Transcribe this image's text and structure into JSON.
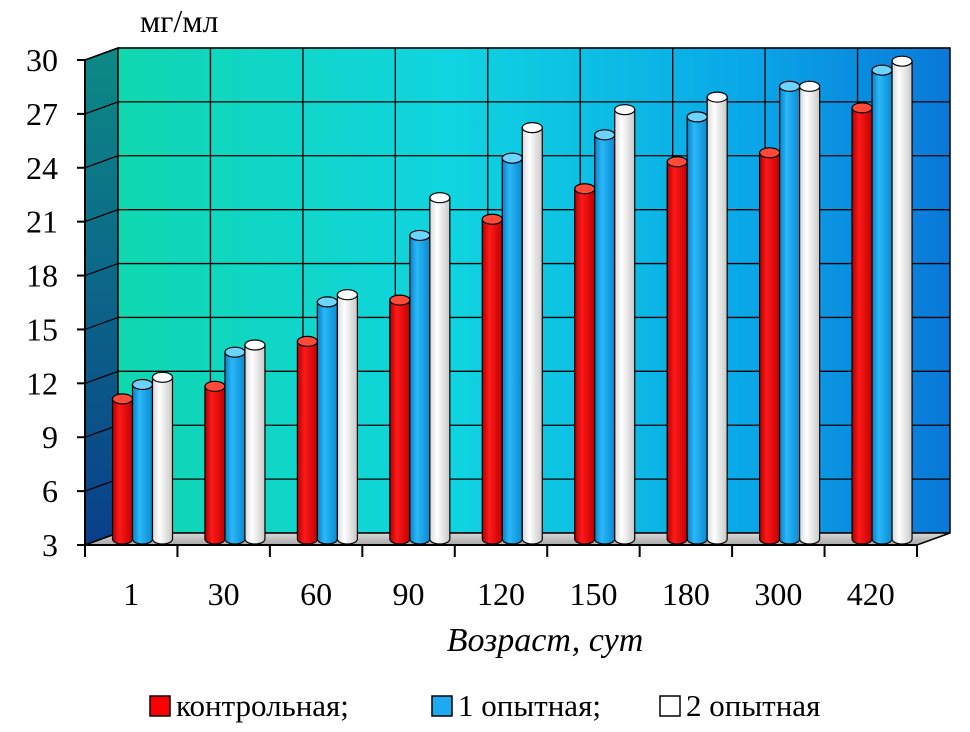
{
  "chart_data": {
    "type": "bar",
    "unit_label": "мг/мл",
    "xlabel": "Возраст, сут",
    "ylabel": "",
    "ylim": [
      3,
      30
    ],
    "y_ticks": [
      "3",
      "6",
      "9",
      "12",
      "15",
      "18",
      "21",
      "24",
      "27",
      "30"
    ],
    "categories": [
      "1",
      "30",
      "60",
      "90",
      "120",
      "150",
      "180",
      "300",
      "420"
    ],
    "series": [
      {
        "name": "контрольная;",
        "color": "#ff0000",
        "values": [
          10.8,
          11.5,
          14.0,
          16.3,
          20.8,
          22.5,
          24.0,
          24.5,
          27.0
        ]
      },
      {
        "name": "1 опытная;",
        "color": "#1eaaf0",
        "values": [
          11.6,
          13.4,
          16.2,
          19.9,
          24.2,
          25.5,
          26.5,
          28.2,
          29.1
        ]
      },
      {
        "name": "2 опытная",
        "color": "#ffffff",
        "values": [
          12.0,
          13.8,
          16.6,
          22.0,
          25.9,
          26.9,
          27.6,
          28.2,
          29.6
        ]
      }
    ],
    "grid": true,
    "legend_position": "bottom"
  }
}
